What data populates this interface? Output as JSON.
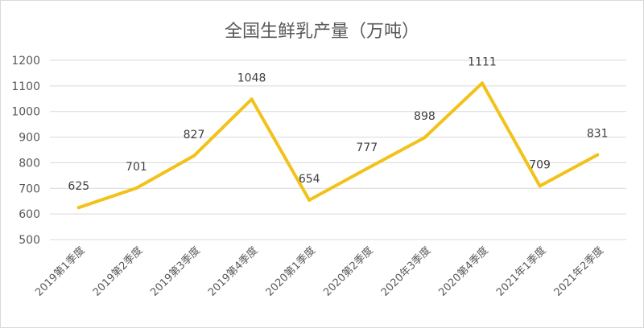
{
  "chart_data": {
    "type": "line",
    "title": "全国生鲜乳产量（万吨）",
    "categories": [
      "2019第1季度",
      "2019第2季度",
      "2019第3季度",
      "2019第4季度",
      "2020第1季度",
      "2020第2季度",
      "2020年3季度",
      "2020第4季度",
      "2021年1季度",
      "2021年2季度"
    ],
    "series": [
      {
        "values": [
          625,
          701,
          827,
          1048,
          654,
          777,
          898,
          1111,
          709,
          831
        ]
      }
    ],
    "ylim": [
      500,
      1200
    ],
    "yticks": [
      500,
      600,
      700,
      800,
      900,
      1000,
      1100,
      1200
    ],
    "grid": true,
    "color": "#f2c219"
  }
}
